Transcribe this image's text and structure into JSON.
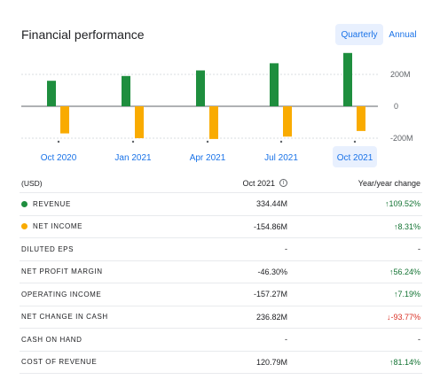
{
  "header": {
    "title": "Financial performance",
    "quarterly_label": "Quarterly",
    "annual_label": "Annual"
  },
  "chart_data": {
    "type": "bar",
    "categories": [
      "Oct 2020",
      "Jan 2021",
      "Apr 2021",
      "Jul 2021",
      "Oct 2021"
    ],
    "series": [
      {
        "name": "Revenue",
        "color": "#1e8e3e",
        "values": [
          160,
          190,
          225,
          270,
          334.44
        ]
      },
      {
        "name": "Net income",
        "color": "#f9ab00",
        "values": [
          -170,
          -200,
          -205,
          -190,
          -154.86
        ]
      }
    ],
    "ytick_labels": [
      "200M",
      "0",
      "-200M"
    ],
    "yticks": [
      200,
      0,
      -200
    ],
    "ylim": [
      -230,
      340
    ],
    "selected_category": "Oct 2021"
  },
  "table": {
    "currency_label": "(USD)",
    "period_label": "Oct 2021",
    "change_label": "Year/year change",
    "rows": [
      {
        "label": "Revenue",
        "value": "334.44M",
        "change": "↑109.52%",
        "dir": "up",
        "dot": "#1e8e3e"
      },
      {
        "label": "Net income",
        "value": "-154.86M",
        "change": "↑8.31%",
        "dir": "up",
        "dot": "#f9ab00"
      },
      {
        "label": "Diluted EPS",
        "value": "-",
        "change": "-",
        "dir": "neutral"
      },
      {
        "label": "Net profit margin",
        "value": "-46.30%",
        "change": "↑56.24%",
        "dir": "up"
      },
      {
        "label": "Operating income",
        "value": "-157.27M",
        "change": "↑7.19%",
        "dir": "up"
      },
      {
        "label": "Net change in cash",
        "value": "236.82M",
        "change": "↓-93.77%",
        "dir": "down"
      },
      {
        "label": "Cash on hand",
        "value": "-",
        "change": "-",
        "dir": "neutral"
      },
      {
        "label": "Cost of revenue",
        "value": "120.79M",
        "change": "↑81.14%",
        "dir": "up"
      }
    ]
  }
}
